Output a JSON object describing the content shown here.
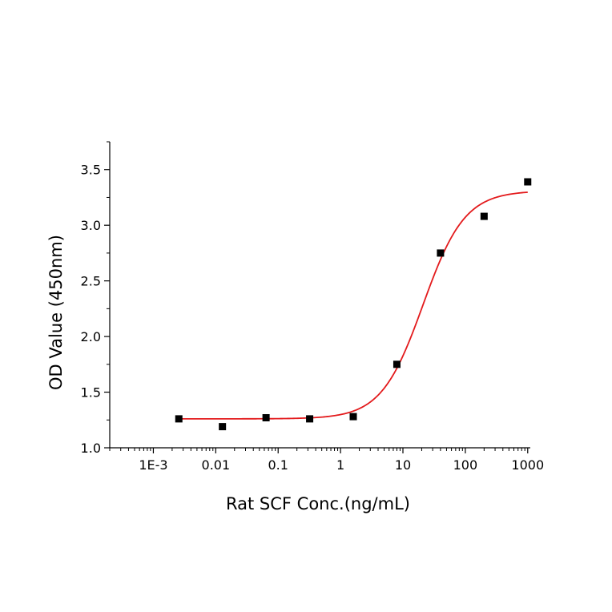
{
  "chart_data": {
    "type": "scatter",
    "title": "",
    "xlabel": "Rat SCF Conc.(ng/mL)",
    "ylabel": "OD Value (450nm)",
    "x_scale": "log",
    "xlim": [
      0.0002,
      1100
    ],
    "ylim": [
      1.0,
      3.75
    ],
    "x_ticks": [
      {
        "value": 0.001,
        "label": "1E-3"
      },
      {
        "value": 0.01,
        "label": "0.01"
      },
      {
        "value": 0.1,
        "label": "0.1"
      },
      {
        "value": 1,
        "label": "1"
      },
      {
        "value": 10,
        "label": "10"
      },
      {
        "value": 100,
        "label": "100"
      },
      {
        "value": 1000,
        "label": "1000"
      }
    ],
    "y_ticks": [
      {
        "value": 1.0,
        "label": "1.0"
      },
      {
        "value": 1.5,
        "label": "1.5"
      },
      {
        "value": 2.0,
        "label": "2.0"
      },
      {
        "value": 2.5,
        "label": "2.5"
      },
      {
        "value": 3.0,
        "label": "3.0"
      },
      {
        "value": 3.5,
        "label": "3.5"
      }
    ],
    "grid": false,
    "legend": "none",
    "series": [
      {
        "marker": "square",
        "color": "#000000",
        "points": [
          {
            "x": 0.00256,
            "y": 1.26
          },
          {
            "x": 0.0128,
            "y": 1.19
          },
          {
            "x": 0.064,
            "y": 1.27
          },
          {
            "x": 0.32,
            "y": 1.26
          },
          {
            "x": 1.6,
            "y": 1.28
          },
          {
            "x": 8.0,
            "y": 1.75
          },
          {
            "x": 40.0,
            "y": 2.75
          },
          {
            "x": 200.0,
            "y": 3.08
          },
          {
            "x": 1000.0,
            "y": 3.39
          }
        ]
      }
    ],
    "fit_curve": {
      "model": "4PL",
      "color": "#e31a1c",
      "bottom": 1.26,
      "top": 3.31,
      "ec50": 21,
      "hill": 1.3,
      "x_start": 0.00256,
      "x_end": 1000
    }
  }
}
